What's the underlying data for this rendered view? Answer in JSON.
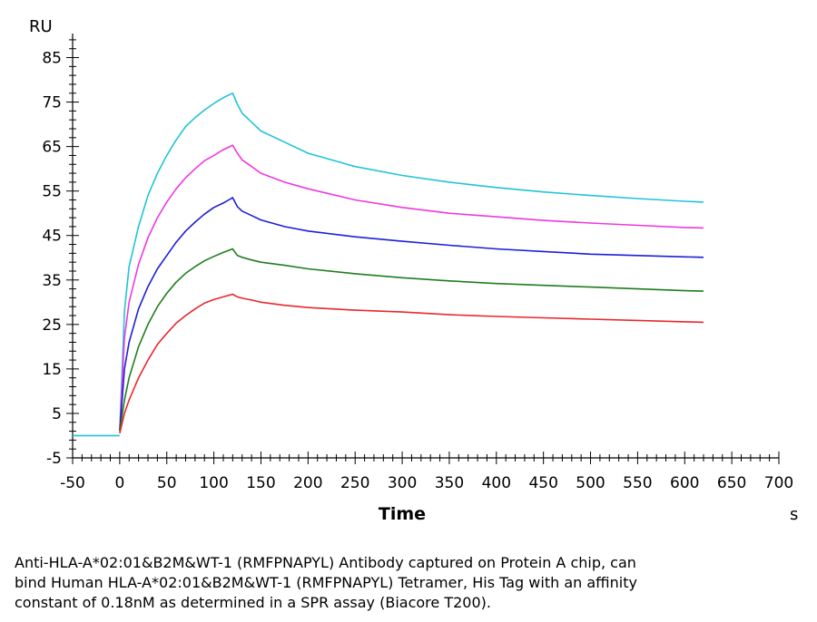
{
  "chart_data": {
    "type": "line",
    "y_unit": "RU",
    "x_unit": "s",
    "xlabel": "Time",
    "xlim": [
      -50,
      700
    ],
    "ylim": [
      -5,
      90
    ],
    "x_ticks": [
      -50,
      0,
      50,
      100,
      150,
      200,
      250,
      300,
      350,
      400,
      450,
      500,
      550,
      600,
      650,
      700
    ],
    "y_ticks": [
      -5,
      5,
      15,
      25,
      35,
      45,
      55,
      65,
      75,
      85
    ],
    "grid": false,
    "legend": "none",
    "baseline": {
      "color": "#1fc4d6",
      "x": [
        -50,
        0
      ],
      "y": [
        0,
        0
      ]
    },
    "series": [
      {
        "color": "#1fc4d6",
        "x": [
          0,
          5,
          10,
          20,
          30,
          40,
          50,
          60,
          70,
          80,
          90,
          100,
          110,
          120,
          125,
          130,
          140,
          150,
          175,
          200,
          250,
          300,
          350,
          400,
          450,
          500,
          550,
          600,
          620
        ],
        "y": [
          1,
          28,
          38,
          47,
          54,
          59,
          63,
          66.5,
          69.5,
          71.5,
          73.2,
          74.7,
          76,
          77,
          74.5,
          72.5,
          70.5,
          68.5,
          66,
          63.5,
          60.5,
          58.5,
          57,
          55.8,
          54.8,
          54,
          53.3,
          52.7,
          52.5
        ]
      },
      {
        "color": "#ee38e0",
        "x": [
          0,
          5,
          10,
          20,
          30,
          40,
          50,
          60,
          70,
          80,
          90,
          100,
          110,
          120,
          125,
          130,
          140,
          150,
          175,
          200,
          250,
          300,
          350,
          400,
          450,
          500,
          550,
          600,
          620
        ],
        "y": [
          1,
          22,
          30,
          38.5,
          44.5,
          49,
          52.5,
          55.5,
          58,
          60,
          61.8,
          63,
          64.3,
          65.3,
          63.5,
          62,
          60.5,
          59,
          57,
          55.5,
          53,
          51.3,
          50,
          49.2,
          48.4,
          47.8,
          47.3,
          46.8,
          46.7
        ]
      },
      {
        "color": "#1c1fd6",
        "x": [
          0,
          5,
          10,
          20,
          30,
          40,
          50,
          60,
          70,
          80,
          90,
          100,
          110,
          120,
          125,
          130,
          140,
          150,
          175,
          200,
          250,
          300,
          350,
          400,
          450,
          500,
          550,
          600,
          620
        ],
        "y": [
          1,
          15,
          21,
          28.5,
          33.5,
          37.5,
          40.5,
          43.5,
          46,
          48,
          49.8,
          51.3,
          52.3,
          53.5,
          51.5,
          50.5,
          49.5,
          48.5,
          47,
          46,
          44.7,
          43.7,
          42.8,
          42,
          41.4,
          40.8,
          40.5,
          40.2,
          40.1
        ]
      },
      {
        "color": "#1f7d1f",
        "x": [
          0,
          5,
          10,
          20,
          30,
          40,
          50,
          60,
          70,
          80,
          90,
          100,
          110,
          120,
          125,
          130,
          140,
          150,
          175,
          200,
          250,
          300,
          350,
          400,
          450,
          500,
          550,
          600,
          620
        ],
        "y": [
          1,
          8,
          13,
          20,
          25,
          29,
          32,
          34.5,
          36.5,
          38,
          39.3,
          40.3,
          41.2,
          42,
          40.5,
          40.1,
          39.5,
          39,
          38.3,
          37.5,
          36.4,
          35.5,
          34.8,
          34.2,
          33.8,
          33.4,
          33,
          32.6,
          32.5
        ]
      },
      {
        "color": "#e8282c",
        "x": [
          0,
          5,
          10,
          20,
          30,
          40,
          50,
          60,
          70,
          80,
          90,
          100,
          110,
          120,
          125,
          130,
          140,
          150,
          175,
          200,
          250,
          300,
          350,
          400,
          450,
          500,
          550,
          600,
          620
        ],
        "y": [
          0.5,
          5,
          8,
          13,
          17,
          20.5,
          23,
          25.3,
          27,
          28.5,
          29.8,
          30.6,
          31.2,
          31.8,
          31.2,
          30.9,
          30.5,
          30,
          29.3,
          28.8,
          28.2,
          27.8,
          27.2,
          26.8,
          26.5,
          26.2,
          25.9,
          25.6,
          25.5
        ]
      }
    ]
  },
  "caption": {
    "line1": "Anti-HLA-A*02:01&B2M&WT-1 (RMFPNAPYL) Antibody captured on Protein A chip, can",
    "line2": "bind Human HLA-A*02:01&B2M&WT-1 (RMFPNAPYL) Tetramer, His Tag with an affinity",
    "line3": "constant of 0.18nM as determined in a SPR assay (Biacore T200)."
  }
}
